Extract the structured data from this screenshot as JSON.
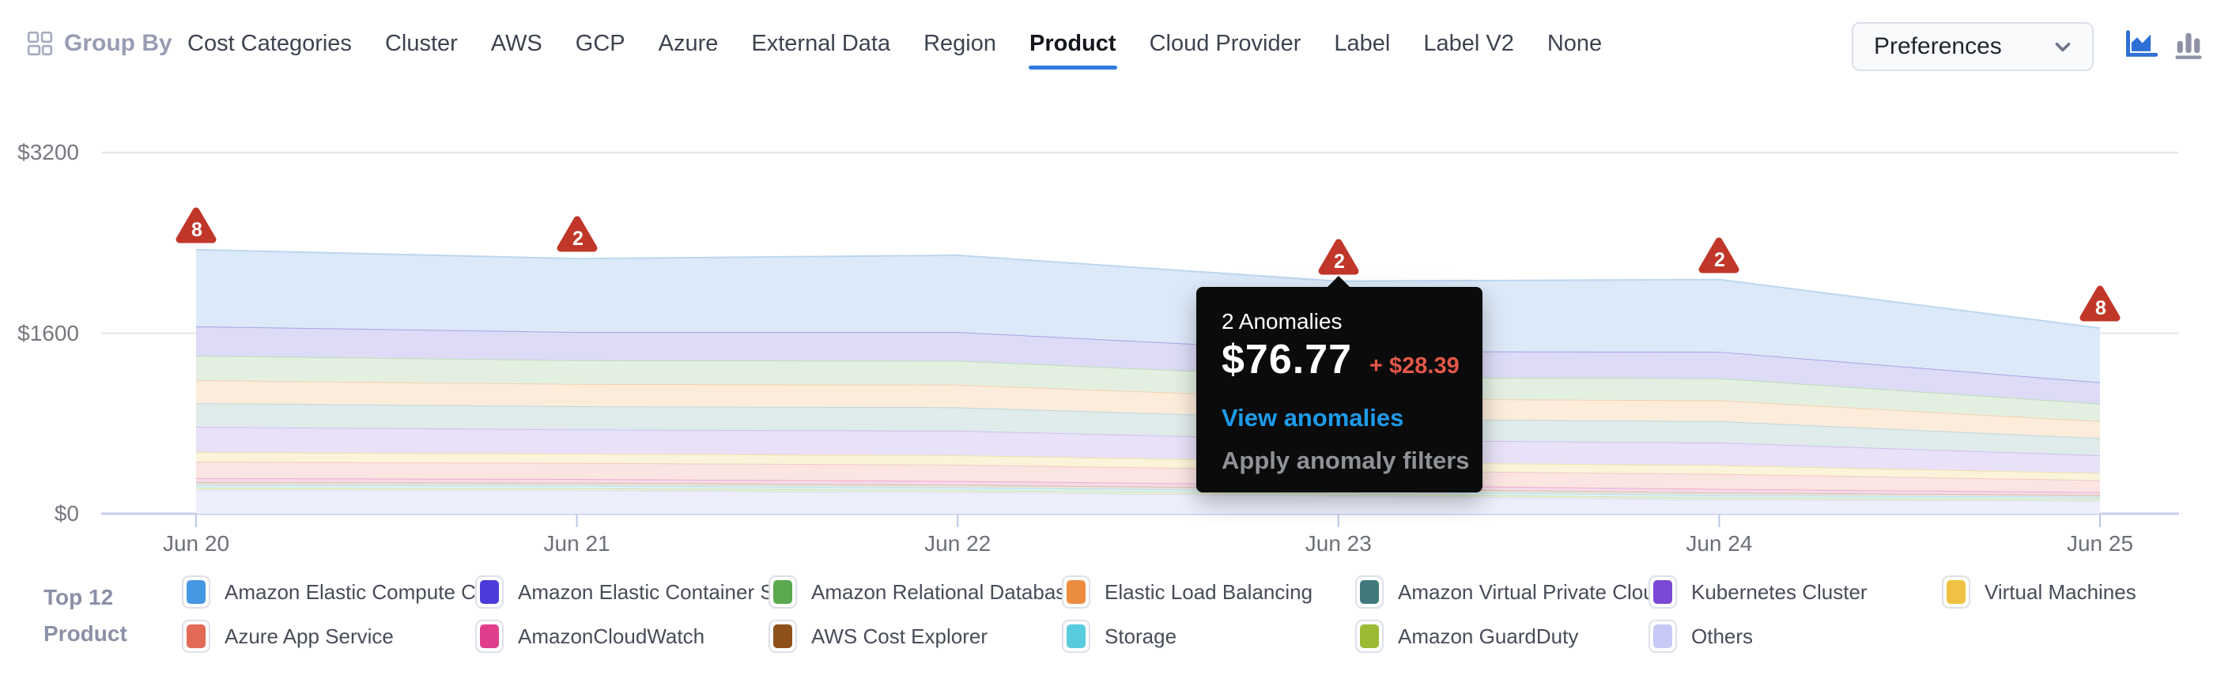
{
  "header": {
    "group_by": {
      "label": "Group By"
    },
    "tabs": [
      {
        "label": "Cost Categories",
        "active": false
      },
      {
        "label": "Cluster",
        "active": false
      },
      {
        "label": "AWS",
        "active": false
      },
      {
        "label": "GCP",
        "active": false
      },
      {
        "label": "Azure",
        "active": false
      },
      {
        "label": "External Data",
        "active": false
      },
      {
        "label": "Region",
        "active": false
      },
      {
        "label": "Product",
        "active": true
      },
      {
        "label": "Cloud Provider",
        "active": false
      },
      {
        "label": "Label",
        "active": false
      },
      {
        "label": "Label V2",
        "active": false
      },
      {
        "label": "None",
        "active": false
      }
    ],
    "preferences": {
      "label": "Preferences"
    },
    "view_toggles": {
      "area_chart_color": "#2E6FD6",
      "bar_chart_color": "#8D92A5",
      "active": "area"
    }
  },
  "chart_data": {
    "type": "area",
    "stacked": true,
    "title": "",
    "xlabel": "",
    "ylabel": "",
    "categories": [
      "Jun 20",
      "Jun 21",
      "Jun 22",
      "Jun 23",
      "Jun 24",
      "Jun 25"
    ],
    "ylim": [
      0,
      3200
    ],
    "y_ticks": [
      {
        "label": "$0",
        "value": 0
      },
      {
        "label": "$1600",
        "value": 1600
      },
      {
        "label": "$3200",
        "value": 3200
      }
    ],
    "grid": "horizontal",
    "legend_position": "bottom",
    "series": [
      {
        "name": "Amazon Elastic Compute Cl...",
        "color": "#4697E3",
        "fill": "#dce9f8",
        "edge": "#bcd7f0",
        "values": [
          680,
          650,
          680,
          620,
          640,
          480
        ]
      },
      {
        "name": "Amazon Elastic Container S...",
        "color": "#4B3BD8",
        "fill": "#dddbf6",
        "edge": "#a8a3e6",
        "values": [
          260,
          250,
          255,
          230,
          235,
          190
        ]
      },
      {
        "name": "Amazon Relational Databas...",
        "color": "#5AA94F",
        "fill": "#e3f0e1",
        "edge": "#bedcba",
        "values": [
          217,
          210,
          212,
          190,
          195,
          155
        ]
      },
      {
        "name": "Elastic Load Balancing",
        "color": "#EC8C3E",
        "fill": "#fcecdc",
        "edge": "#f4d0ae",
        "values": [
          203,
          198,
          200,
          180,
          185,
          150
        ]
      },
      {
        "name": "Amazon Virtual Private Cloud",
        "color": "#41797C",
        "fill": "#e0ebeb",
        "edge": "#bed7d7",
        "values": [
          210,
          205,
          207,
          185,
          190,
          152
        ]
      },
      {
        "name": "Kubernetes Cluster",
        "color": "#7A49D6",
        "fill": "#e8e1f7",
        "edge": "#cfbfee",
        "values": [
          224,
          215,
          218,
          195,
          200,
          158
        ]
      },
      {
        "name": "Virtual Machines",
        "color": "#EFC243",
        "fill": "#fbf4db",
        "edge": "#f1e0a9",
        "values": [
          84,
          82,
          83,
          75,
          77,
          62
        ]
      },
      {
        "name": "Azure App Service",
        "color": "#E26A57",
        "fill": "#fae5e2",
        "edge": "#f3c8c2",
        "values": [
          147,
          142,
          144,
          130,
          133,
          106
        ]
      },
      {
        "name": "AmazonCloudWatch",
        "color": "#E03D8D",
        "fill": "#f6d9e8",
        "edge": "#eeadd0",
        "values": [
          35,
          34,
          34,
          31,
          32,
          26
        ]
      },
      {
        "name": "AWS Cost Explorer",
        "color": "#8E5119",
        "fill": "#eae3db",
        "edge": "#d5c2af",
        "values": [
          25,
          24,
          24,
          22,
          23,
          18
        ]
      },
      {
        "name": "Storage",
        "color": "#58CBDC",
        "fill": "#def1f5",
        "edge": "#b6e3eb",
        "values": [
          25,
          24,
          24,
          22,
          23,
          18
        ]
      },
      {
        "name": "Amazon GuardDuty",
        "color": "#9CBA33",
        "fill": "#eaf1da",
        "edge": "#d4e4ac",
        "values": [
          20,
          19,
          19,
          18,
          18,
          15
        ]
      },
      {
        "name": "Others",
        "color": "#C7CAF6",
        "fill": "#edeffc",
        "edge": "#d8dcf5",
        "values": [
          210,
          207,
          190,
          162,
          124,
          115
        ]
      }
    ],
    "anomalies": [
      {
        "category": "Jun 20",
        "count": 8
      },
      {
        "category": "Jun 21",
        "count": 2
      },
      {
        "category": "Jun 23",
        "count": 2
      },
      {
        "category": "Jun 24",
        "count": 2
      },
      {
        "category": "Jun 25",
        "count": 8
      }
    ],
    "anomaly_color": "#C0372A",
    "tooltip": {
      "category": "Jun 23",
      "title": "2 Anomalies",
      "value": "$76.77",
      "delta": "+ $28.39",
      "delta_color": "#E25749",
      "link": "View anomalies",
      "link_color": "#1E9BE9",
      "secondary": "Apply anomaly filters",
      "secondary_color": "#8F9296"
    }
  },
  "legend": {
    "title_lines": [
      "Top 12",
      "Product"
    ]
  }
}
